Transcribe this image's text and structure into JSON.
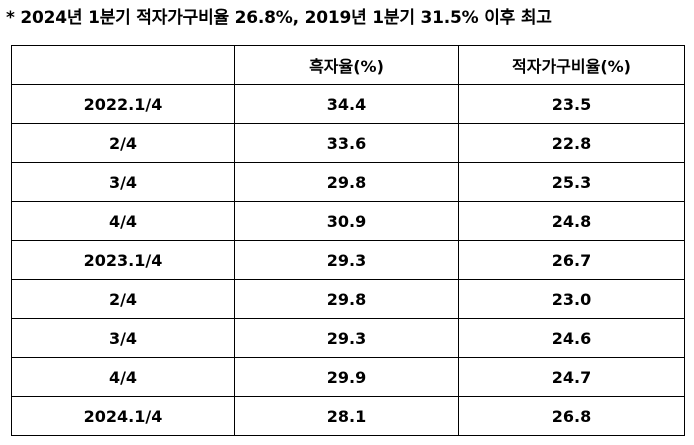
{
  "caption": "* 2024년 1분기 적자가구비율 26.8%, 2019년 1분기 31.5% 이후 최고",
  "table": {
    "headers": [
      "",
      "흑자율(%)",
      "적자가구비율(%)"
    ],
    "rows": [
      {
        "period": "2022.1/4",
        "surplus": "34.4",
        "deficit": "23.5"
      },
      {
        "period": "2/4",
        "surplus": "33.6",
        "deficit": "22.8"
      },
      {
        "period": "3/4",
        "surplus": "29.8",
        "deficit": "25.3"
      },
      {
        "period": "4/4",
        "surplus": "30.9",
        "deficit": "24.8"
      },
      {
        "period": "2023.1/4",
        "surplus": "29.3",
        "deficit": "26.7"
      },
      {
        "period": "2/4",
        "surplus": "29.8",
        "deficit": "23.0"
      },
      {
        "period": "3/4",
        "surplus": "29.3",
        "deficit": "24.6"
      },
      {
        "period": "4/4",
        "surplus": "29.9",
        "deficit": "24.7"
      },
      {
        "period": "2024.1/4",
        "surplus": "28.1",
        "deficit": "26.8"
      }
    ]
  }
}
